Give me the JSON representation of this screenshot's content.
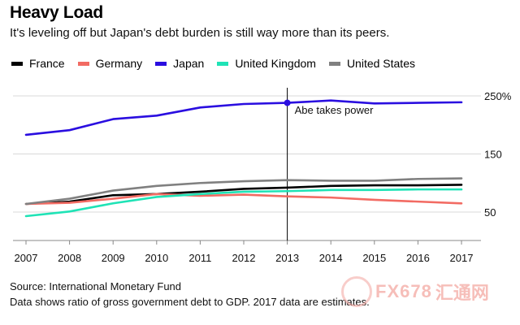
{
  "header": {
    "title": "Heavy Load",
    "subtitle": "It's leveling off but Japan's debt burden is still way more than its peers."
  },
  "footer": {
    "source": "Source: International Monetary Fund",
    "note": "Data shows ratio of gross government debt to GDP. 2017 data are estimates."
  },
  "watermark": {
    "text": "FX678",
    "text2": "汇通网"
  },
  "chart_data": {
    "type": "line",
    "title": "Heavy Load",
    "subtitle": "It's leveling off but Japan's debt burden is still way more than its peers.",
    "xlabel": "",
    "ylabel": "",
    "x": [
      2007,
      2008,
      2009,
      2010,
      2011,
      2012,
      2013,
      2014,
      2015,
      2016,
      2017
    ],
    "x_ticks": [
      "2007",
      "2008",
      "2009",
      "2010",
      "2011",
      "2012",
      "2013",
      "2014",
      "2015",
      "2016",
      "2017"
    ],
    "y_ticks": [
      {
        "value": 250,
        "label": "250%"
      },
      {
        "value": 150,
        "label": "150"
      },
      {
        "value": 50,
        "label": "50"
      }
    ],
    "ylim": [
      0,
      260
    ],
    "grid": true,
    "legend_position": "top-left",
    "series": [
      {
        "name": "France",
        "color": "#000000",
        "values": [
          64,
          68,
          79,
          81,
          85,
          90,
          92,
          95,
          96,
          96,
          97
        ]
      },
      {
        "name": "Germany",
        "color": "#f26b63",
        "values": [
          64,
          66,
          73,
          81,
          78,
          80,
          77,
          75,
          71,
          68,
          65
        ]
      },
      {
        "name": "Japan",
        "color": "#2a0ee0",
        "values": [
          183,
          191,
          210,
          216,
          230,
          236,
          238,
          242,
          237,
          238,
          239
        ]
      },
      {
        "name": "United Kingdom",
        "color": "#1fe3b6",
        "values": [
          43,
          51,
          65,
          76,
          81,
          85,
          86,
          88,
          88,
          89,
          89
        ]
      },
      {
        "name": "United States",
        "color": "#808080",
        "values": [
          64,
          73,
          87,
          95,
          100,
          103,
          105,
          104,
          104,
          107,
          108
        ]
      }
    ],
    "annotations": [
      {
        "text": "Abe takes power",
        "x": 2013
      }
    ]
  }
}
